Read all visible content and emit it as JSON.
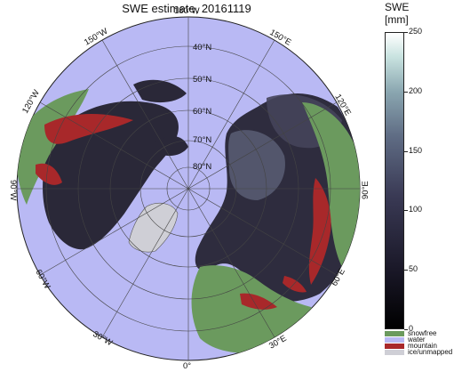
{
  "title": "SWE estimate, 20161119",
  "colorbar": {
    "title_line1": "SWE",
    "title_line2": "[mm]",
    "ticks": [
      "250",
      "200",
      "150",
      "100",
      "50",
      "0"
    ],
    "tick_values": [
      250,
      200,
      150,
      100,
      50,
      0
    ],
    "max": 250
  },
  "legend": [
    {
      "label": "snowfree",
      "color": "#6b9a5e"
    },
    {
      "label": "water",
      "color": "#b9b9f4"
    },
    {
      "label": "mountain",
      "color": "#a8282a"
    },
    {
      "label": "ice/unmapped",
      "color": "#cfcfd6"
    }
  ],
  "map_labels": {
    "lat_40": "40°N",
    "lat_50": "50°N",
    "lat_60": "60°N",
    "lat_70": "70°N",
    "lat_80": "80°N",
    "lon_180": "180°W",
    "lon_150w": "150°W",
    "lon_150e": "150°E",
    "lon_120w": "120°W",
    "lon_120e": "120°E",
    "lon_90w": "90°W",
    "lon_90e": "90°E",
    "lon_60w": "60°W",
    "lon_60e": "60°E",
    "lon_30w": "30°W",
    "lon_30e": "30°E",
    "lon_0": "0°"
  },
  "colors": {
    "ocean": "#b9b9f4",
    "snow_dark": "#1e1c2a",
    "snow_mid": "#3c3a52",
    "snow_light": "#6a708a",
    "snowfree": "#6b9a5e",
    "mountain": "#a8282a",
    "ice": "#cfcfd6"
  }
}
